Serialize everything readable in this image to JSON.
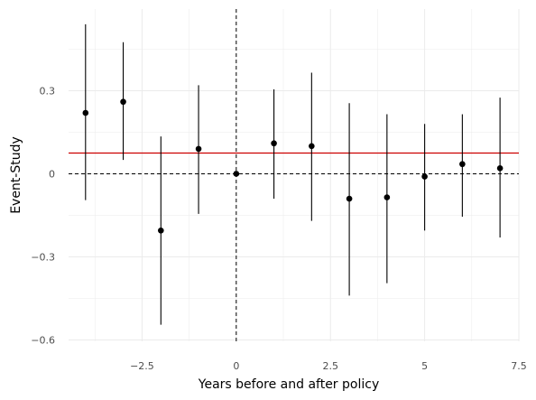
{
  "chart_data": {
    "type": "scatter",
    "title": "",
    "xlabel": "Years before and after policy",
    "ylabel": "Event-Study",
    "xlim": [
      -4.45,
      7.5
    ],
    "ylim": [
      -0.605,
      0.595
    ],
    "x_ticks": [
      -2.5,
      0,
      2.5,
      5,
      7.5
    ],
    "x_tick_labels": [
      "−2.5",
      "0",
      "2.5",
      "5",
      "7.5"
    ],
    "y_ticks": [
      -0.6,
      -0.3,
      0,
      0.3
    ],
    "y_tick_labels": [
      "−0.6",
      "−0.3",
      "0",
      "0.3"
    ],
    "grid": true,
    "legend": "none",
    "colors": {
      "points": "#000000",
      "errorbars": "#000000",
      "hline": "#cc0000",
      "grid": "#ebebeb"
    },
    "hline_value": 0.075,
    "ref_hline": 0,
    "ref_vline": 0,
    "points": [
      {
        "x": -4,
        "y": 0.22,
        "lo": -0.095,
        "hi": 0.54
      },
      {
        "x": -3,
        "y": 0.26,
        "lo": 0.05,
        "hi": 0.475
      },
      {
        "x": -2,
        "y": -0.205,
        "lo": -0.545,
        "hi": 0.135
      },
      {
        "x": -1,
        "y": 0.09,
        "lo": -0.145,
        "hi": 0.32
      },
      {
        "x": 0,
        "y": 0.0,
        "lo": 0.0,
        "hi": 0.0
      },
      {
        "x": 1,
        "y": 0.11,
        "lo": -0.09,
        "hi": 0.305
      },
      {
        "x": 2,
        "y": 0.1,
        "lo": -0.17,
        "hi": 0.365
      },
      {
        "x": 3,
        "y": -0.09,
        "lo": -0.44,
        "hi": 0.255
      },
      {
        "x": 4,
        "y": -0.085,
        "lo": -0.395,
        "hi": 0.215
      },
      {
        "x": 5,
        "y": -0.01,
        "lo": -0.205,
        "hi": 0.18
      },
      {
        "x": 6,
        "y": 0.035,
        "lo": -0.155,
        "hi": 0.215
      },
      {
        "x": 7,
        "y": 0.02,
        "lo": -0.23,
        "hi": 0.275
      }
    ]
  }
}
